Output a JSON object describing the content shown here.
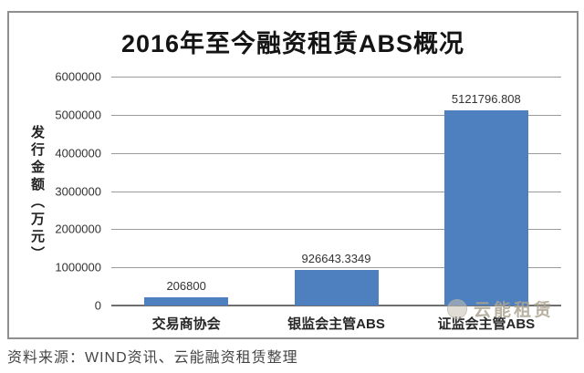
{
  "chart_data": {
    "type": "bar",
    "title": "2016年至今融资租赁ABS概况",
    "ylabel": "发行金额（万元）",
    "xlabel": "",
    "categories": [
      "交易商协会",
      "银监会主管ABS",
      "证监会主管ABS"
    ],
    "values": [
      206800,
      926643.3349,
      5121796.808
    ],
    "data_labels": [
      "206800",
      "926643.3349",
      "5121796.808"
    ],
    "y_ticks": [
      "6000000",
      "5000000",
      "4000000",
      "3000000",
      "2000000",
      "1000000",
      "0"
    ],
    "ylim": [
      0,
      6000000
    ],
    "grid": true,
    "legend": "none",
    "bar_color": "#4E80BF",
    "gridline_color": "#9b9b9b",
    "axis_color": "#6e6e6e"
  },
  "watermark": {
    "logo": "circle-logo-icon",
    "text": "云能租赁"
  },
  "source_note": "资料来源：WIND资讯、云能融资租赁整理"
}
